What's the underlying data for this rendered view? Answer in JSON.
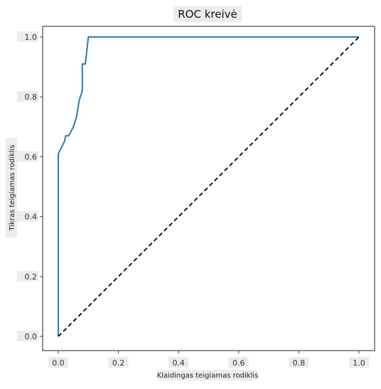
{
  "chart_data": {
    "type": "line",
    "title": "ROC kreivė",
    "xlabel": "Klaidingas teigiamas rodiklis",
    "ylabel": "Tikras teigiamas rodiklis",
    "xlim": [
      0.0,
      1.0
    ],
    "ylim": [
      0.0,
      1.0
    ],
    "x_ticks": [
      "0.0",
      "0.2",
      "0.4",
      "0.6",
      "0.8",
      "1.0"
    ],
    "y_ticks": [
      "0.0",
      "0.2",
      "0.4",
      "0.6",
      "0.8",
      "1.0"
    ],
    "grid": false,
    "series": [
      {
        "style": "solid",
        "color": "#2e78b0",
        "points": [
          [
            0.0,
            0.0
          ],
          [
            0.0,
            0.61
          ],
          [
            0.01,
            0.63
          ],
          [
            0.02,
            0.65
          ],
          [
            0.025,
            0.67
          ],
          [
            0.035,
            0.67
          ],
          [
            0.05,
            0.7
          ],
          [
            0.06,
            0.73
          ],
          [
            0.065,
            0.76
          ],
          [
            0.07,
            0.79
          ],
          [
            0.08,
            0.82
          ],
          [
            0.08,
            0.91
          ],
          [
            0.09,
            0.91
          ],
          [
            0.1,
            1.0
          ],
          [
            1.0,
            1.0
          ]
        ]
      },
      {
        "style": "dashed",
        "color": "#000000",
        "points": [
          [
            0.0,
            0.0
          ],
          [
            1.0,
            1.0
          ]
        ]
      }
    ]
  }
}
